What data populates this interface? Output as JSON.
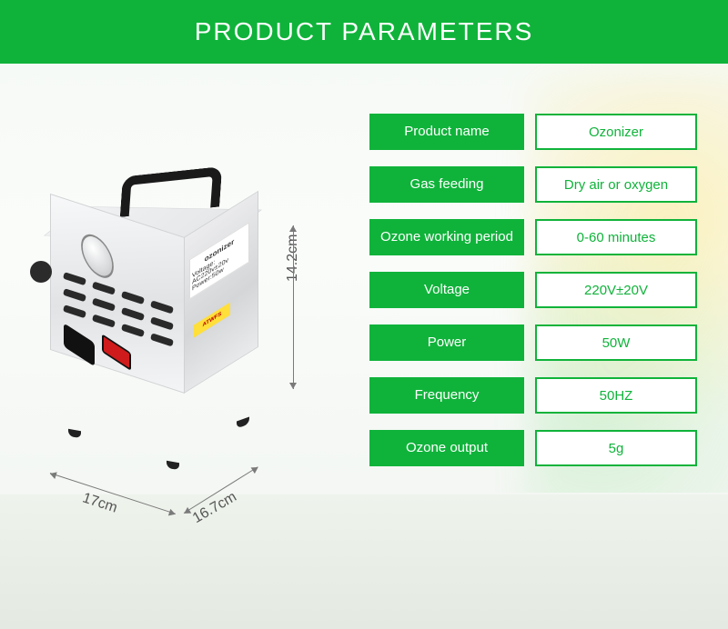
{
  "header": {
    "title": "PRODUCT PARAMETERS"
  },
  "colors": {
    "brand_green": "#0fb33a",
    "white": "#ffffff",
    "dim_gray": "#7a7a7a",
    "text_gray": "#555555"
  },
  "product_illustration": {
    "label_title": "ozonizer",
    "label_line1": "Voltage: AC220v±20v  Power:50w",
    "warning_text": "ATWFS",
    "dimensions": {
      "height": "14.2cm",
      "width_front": "17cm",
      "width_side": "16.7cm"
    }
  },
  "parameters": [
    {
      "label": "Product name",
      "value": "Ozonizer"
    },
    {
      "label": "Gas feeding",
      "value": "Dry air or oxygen"
    },
    {
      "label": "Ozone working period",
      "value": "0-60 minutes"
    },
    {
      "label": "Voltage",
      "value": "220V±20V"
    },
    {
      "label": "Power",
      "value": "50W"
    },
    {
      "label": "Frequency",
      "value": "50HZ"
    },
    {
      "label": "Ozone output",
      "value": "5g"
    }
  ]
}
